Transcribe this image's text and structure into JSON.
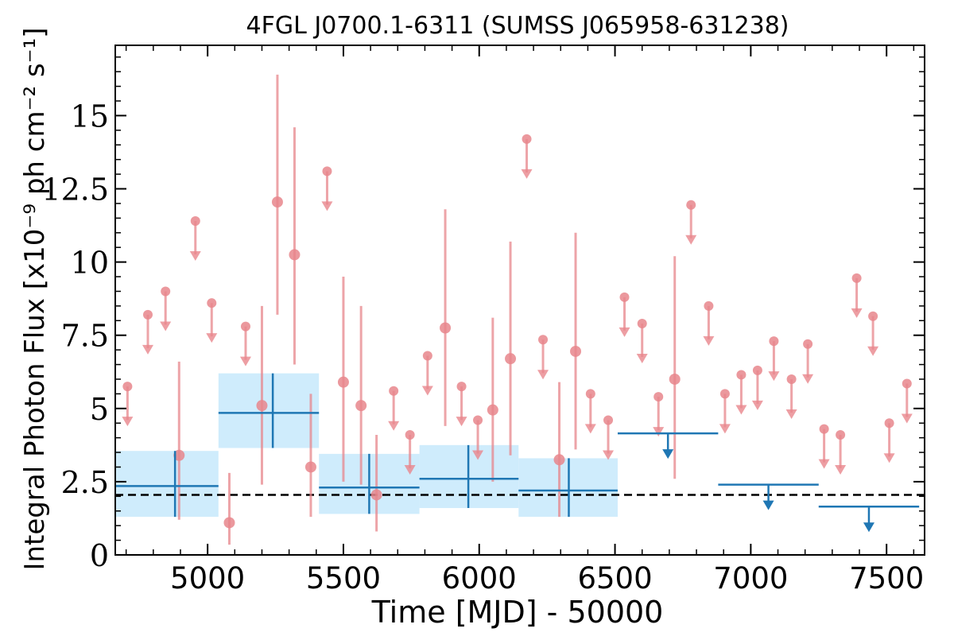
{
  "chart_data": {
    "type": "scatter",
    "title": "4FGL J0700.1-6311 (SUMSS J065958-631238)",
    "xlabel": "Time [MJD] - 50000",
    "ylabel": "Integral Photon Flux [x10⁻⁹ ph cm⁻² s⁻¹]",
    "xlim": [
      4660,
      7640
    ],
    "ylim": [
      0,
      17.4
    ],
    "x_ticks": [
      5000,
      5500,
      6000,
      6500,
      7000,
      7500
    ],
    "y_ticks": [
      0,
      2.5,
      5,
      7.5,
      10,
      12.5,
      15
    ],
    "y_tick_labels": [
      "0",
      "2.5",
      "5",
      "7.5",
      "10",
      "12.5",
      "15"
    ],
    "colors": {
      "short_bins": "#e8868c",
      "long_bins": "#1f77b4",
      "long_band": "#bfe6fb",
      "reference": "#000000"
    },
    "reference_line": {
      "y": 2.05,
      "style": "dashed"
    },
    "short_bin_detections": [
      {
        "x": 4895,
        "y": 3.4,
        "ylo": 1.2,
        "yhi": 6.6
      },
      {
        "x": 5080,
        "y": 1.1,
        "ylo": 0.35,
        "yhi": 2.8
      },
      {
        "x": 5200,
        "y": 5.1,
        "ylo": 2.4,
        "yhi": 8.5
      },
      {
        "x": 5257,
        "y": 12.05,
        "ylo": 8.2,
        "yhi": 16.4
      },
      {
        "x": 5320,
        "y": 10.25,
        "ylo": 6.5,
        "yhi": 14.6
      },
      {
        "x": 5380,
        "y": 3.0,
        "ylo": 1.3,
        "yhi": 5.5
      },
      {
        "x": 5500,
        "y": 5.9,
        "ylo": 2.5,
        "yhi": 9.5
      },
      {
        "x": 5565,
        "y": 5.1,
        "ylo": 2.4,
        "yhi": 8.5
      },
      {
        "x": 5622,
        "y": 2.05,
        "ylo": 0.8,
        "yhi": 4.1
      },
      {
        "x": 5875,
        "y": 7.75,
        "ylo": 4.4,
        "yhi": 11.8
      },
      {
        "x": 6050,
        "y": 4.95,
        "ylo": 2.5,
        "yhi": 8.1
      },
      {
        "x": 6115,
        "y": 6.7,
        "ylo": 3.4,
        "yhi": 10.7
      },
      {
        "x": 6295,
        "y": 3.25,
        "ylo": 1.3,
        "yhi": 5.9
      },
      {
        "x": 6355,
        "y": 6.95,
        "ylo": 3.6,
        "yhi": 11.0
      },
      {
        "x": 6720,
        "y": 6.0,
        "ylo": 2.6,
        "yhi": 10.2
      }
    ],
    "short_bin_upper_limits": [
      {
        "x": 4705,
        "y": 5.75
      },
      {
        "x": 4780,
        "y": 8.2
      },
      {
        "x": 4845,
        "y": 9.0
      },
      {
        "x": 4955,
        "y": 11.4
      },
      {
        "x": 5015,
        "y": 8.6
      },
      {
        "x": 5140,
        "y": 7.8
      },
      {
        "x": 5440,
        "y": 13.1
      },
      {
        "x": 5685,
        "y": 5.6
      },
      {
        "x": 5745,
        "y": 4.1
      },
      {
        "x": 5810,
        "y": 6.8
      },
      {
        "x": 5935,
        "y": 5.75
      },
      {
        "x": 5995,
        "y": 4.6
      },
      {
        "x": 6175,
        "y": 14.2
      },
      {
        "x": 6235,
        "y": 7.35
      },
      {
        "x": 6410,
        "y": 5.5
      },
      {
        "x": 6475,
        "y": 4.6
      },
      {
        "x": 6535,
        "y": 8.8
      },
      {
        "x": 6600,
        "y": 7.9
      },
      {
        "x": 6660,
        "y": 5.4
      },
      {
        "x": 6780,
        "y": 11.95
      },
      {
        "x": 6845,
        "y": 8.5
      },
      {
        "x": 6905,
        "y": 5.5
      },
      {
        "x": 6965,
        "y": 6.15
      },
      {
        "x": 7025,
        "y": 6.3
      },
      {
        "x": 7085,
        "y": 7.3
      },
      {
        "x": 7150,
        "y": 6.0
      },
      {
        "x": 7210,
        "y": 7.2
      },
      {
        "x": 7270,
        "y": 4.3
      },
      {
        "x": 7330,
        "y": 4.1
      },
      {
        "x": 7390,
        "y": 9.45
      },
      {
        "x": 7450,
        "y": 8.15
      },
      {
        "x": 7510,
        "y": 4.5
      },
      {
        "x": 7575,
        "y": 5.85
      }
    ],
    "long_bin_detections": [
      {
        "x0": 4660,
        "x1": 5040,
        "x": 4880,
        "y": 2.35,
        "ylo": 1.3,
        "yhi": 3.55,
        "band_lo": 1.3,
        "band_hi": 3.55
      },
      {
        "x0": 5040,
        "x1": 5410,
        "x": 5240,
        "y": 4.85,
        "ylo": 3.65,
        "yhi": 6.2,
        "band_lo": 3.65,
        "band_hi": 6.2
      },
      {
        "x0": 5410,
        "x1": 5780,
        "x": 5595,
        "y": 2.3,
        "ylo": 1.4,
        "yhi": 3.45,
        "band_lo": 1.4,
        "band_hi": 3.45
      },
      {
        "x0": 5780,
        "x1": 6145,
        "x": 5960,
        "y": 2.6,
        "ylo": 1.6,
        "yhi": 3.75,
        "band_lo": 1.6,
        "band_hi": 3.75
      },
      {
        "x0": 6145,
        "x1": 6510,
        "x": 6330,
        "y": 2.2,
        "ylo": 1.3,
        "yhi": 3.3,
        "band_lo": 1.3,
        "band_hi": 3.3
      }
    ],
    "long_bin_upper_limits": [
      {
        "x0": 6510,
        "x1": 6880,
        "x": 6695,
        "y": 4.15
      },
      {
        "x0": 6880,
        "x1": 7250,
        "x": 7065,
        "y": 2.4
      },
      {
        "x0": 7250,
        "x1": 7620,
        "x": 7435,
        "y": 1.65
      }
    ]
  }
}
